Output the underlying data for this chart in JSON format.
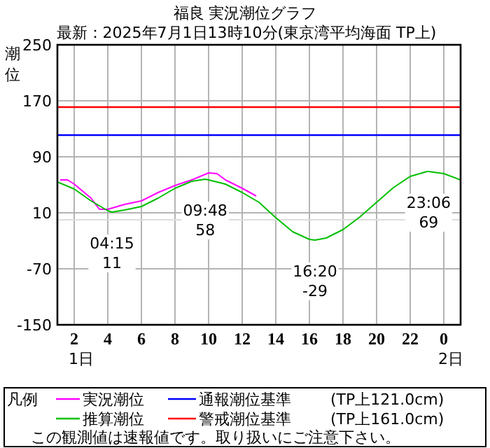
{
  "chart_data": {
    "type": "line",
    "title": "福良 実況潮位グラフ",
    "subtitle": "最新：2025年7月1日13時10分(東京湾平均海面 TP上)",
    "ylabel": "潮位",
    "xlim": [
      "2025-07-01T01:00",
      "2025-07-02T01:00"
    ],
    "xticks": [
      {
        "value": "2025-07-01T02:00",
        "label": "2"
      },
      {
        "value": "2025-07-01T04:00",
        "label": "4"
      },
      {
        "value": "2025-07-01T06:00",
        "label": "6"
      },
      {
        "value": "2025-07-01T08:00",
        "label": "8"
      },
      {
        "value": "2025-07-01T10:00",
        "label": "10"
      },
      {
        "value": "2025-07-01T12:00",
        "label": "12"
      },
      {
        "value": "2025-07-01T14:00",
        "label": "14"
      },
      {
        "value": "2025-07-01T16:00",
        "label": "16"
      },
      {
        "value": "2025-07-01T18:00",
        "label": "18"
      },
      {
        "value": "2025-07-01T20:00",
        "label": "20"
      },
      {
        "value": "2025-07-01T22:00",
        "label": "22"
      },
      {
        "value": "2025-07-02T00:00",
        "label": "0"
      }
    ],
    "ylim": [
      -150,
      250
    ],
    "yticks": [
      -150,
      -70,
      10,
      90,
      170,
      250
    ],
    "grid": true,
    "legend": "bottom",
    "legend_title": "凡例",
    "marker": "none",
    "line_style": "solid",
    "series": [
      {
        "name": "実況潮位",
        "color": "#ff00ff",
        "x": [
          "2025-07-01T01:10",
          "2025-07-01T01:36",
          "2025-07-01T02:00",
          "2025-07-01T03:00",
          "2025-07-01T03:30",
          "2025-07-01T04:00",
          "2025-07-01T05:00",
          "2025-07-01T06:00",
          "2025-07-01T07:00",
          "2025-07-01T08:00",
          "2025-07-01T09:00",
          "2025-07-01T10:00",
          "2025-07-01T10:30",
          "2025-07-01T11:00",
          "2025-07-01T12:00",
          "2025-07-01T12:50"
        ],
        "values": [
          57,
          57,
          51,
          31,
          15,
          15,
          22,
          27,
          39,
          49,
          57,
          67,
          66,
          57,
          45,
          34
        ]
      },
      {
        "name": "推算潮位",
        "color": "#00c000",
        "x": [
          "2025-07-01T01:00",
          "2025-07-01T02:00",
          "2025-07-01T03:00",
          "2025-07-01T04:00",
          "2025-07-01T04:15",
          "2025-07-01T05:00",
          "2025-07-01T06:00",
          "2025-07-01T07:00",
          "2025-07-01T08:00",
          "2025-07-01T09:00",
          "2025-07-01T09:48",
          "2025-07-01T10:00",
          "2025-07-01T11:00",
          "2025-07-01T12:00",
          "2025-07-01T13:00",
          "2025-07-01T14:00",
          "2025-07-01T15:00",
          "2025-07-01T16:00",
          "2025-07-01T16:20",
          "2025-07-01T17:00",
          "2025-07-01T18:00",
          "2025-07-01T19:00",
          "2025-07-01T20:00",
          "2025-07-01T21:00",
          "2025-07-01T22:00",
          "2025-07-01T23:00",
          "2025-07-01T23:06",
          "2025-07-02T00:00",
          "2025-07-02T01:00"
        ],
        "values": [
          54,
          44,
          27,
          13,
          11,
          14,
          19,
          31,
          45,
          55,
          58,
          57,
          51,
          39,
          25,
          3,
          -17,
          -28,
          -29,
          -26,
          -14,
          4,
          25,
          46,
          62,
          69,
          69,
          66,
          57
        ]
      }
    ],
    "ref_lines": [
      {
        "axis": "y",
        "value": 121,
        "label": "通報潮位基準",
        "color": "#0000ff"
      },
      {
        "axis": "y",
        "value": 161,
        "label": "警戒潮位基準",
        "color": "#ff0000"
      },
      {
        "axis": "y",
        "value": 0,
        "color": "#dddddd"
      }
    ],
    "annotations": [
      {
        "text": "04:15 11",
        "x": "2025-07-01T04:15",
        "y": 11
      },
      {
        "text": "09:48 58",
        "x": "2025-07-01T09:48",
        "y": 58
      },
      {
        "text": "16:20 -29",
        "x": "2025-07-01T16:20",
        "y": -29
      },
      {
        "text": "23:06 69",
        "x": "2025-07-01T23:06",
        "y": 69
      },
      "1日",
      "2日",
      "(TP上121.0cm)",
      "(TP上161.0cm)",
      "この観測値は速報値です。取り扱いにご注意下さい。"
    ]
  }
}
